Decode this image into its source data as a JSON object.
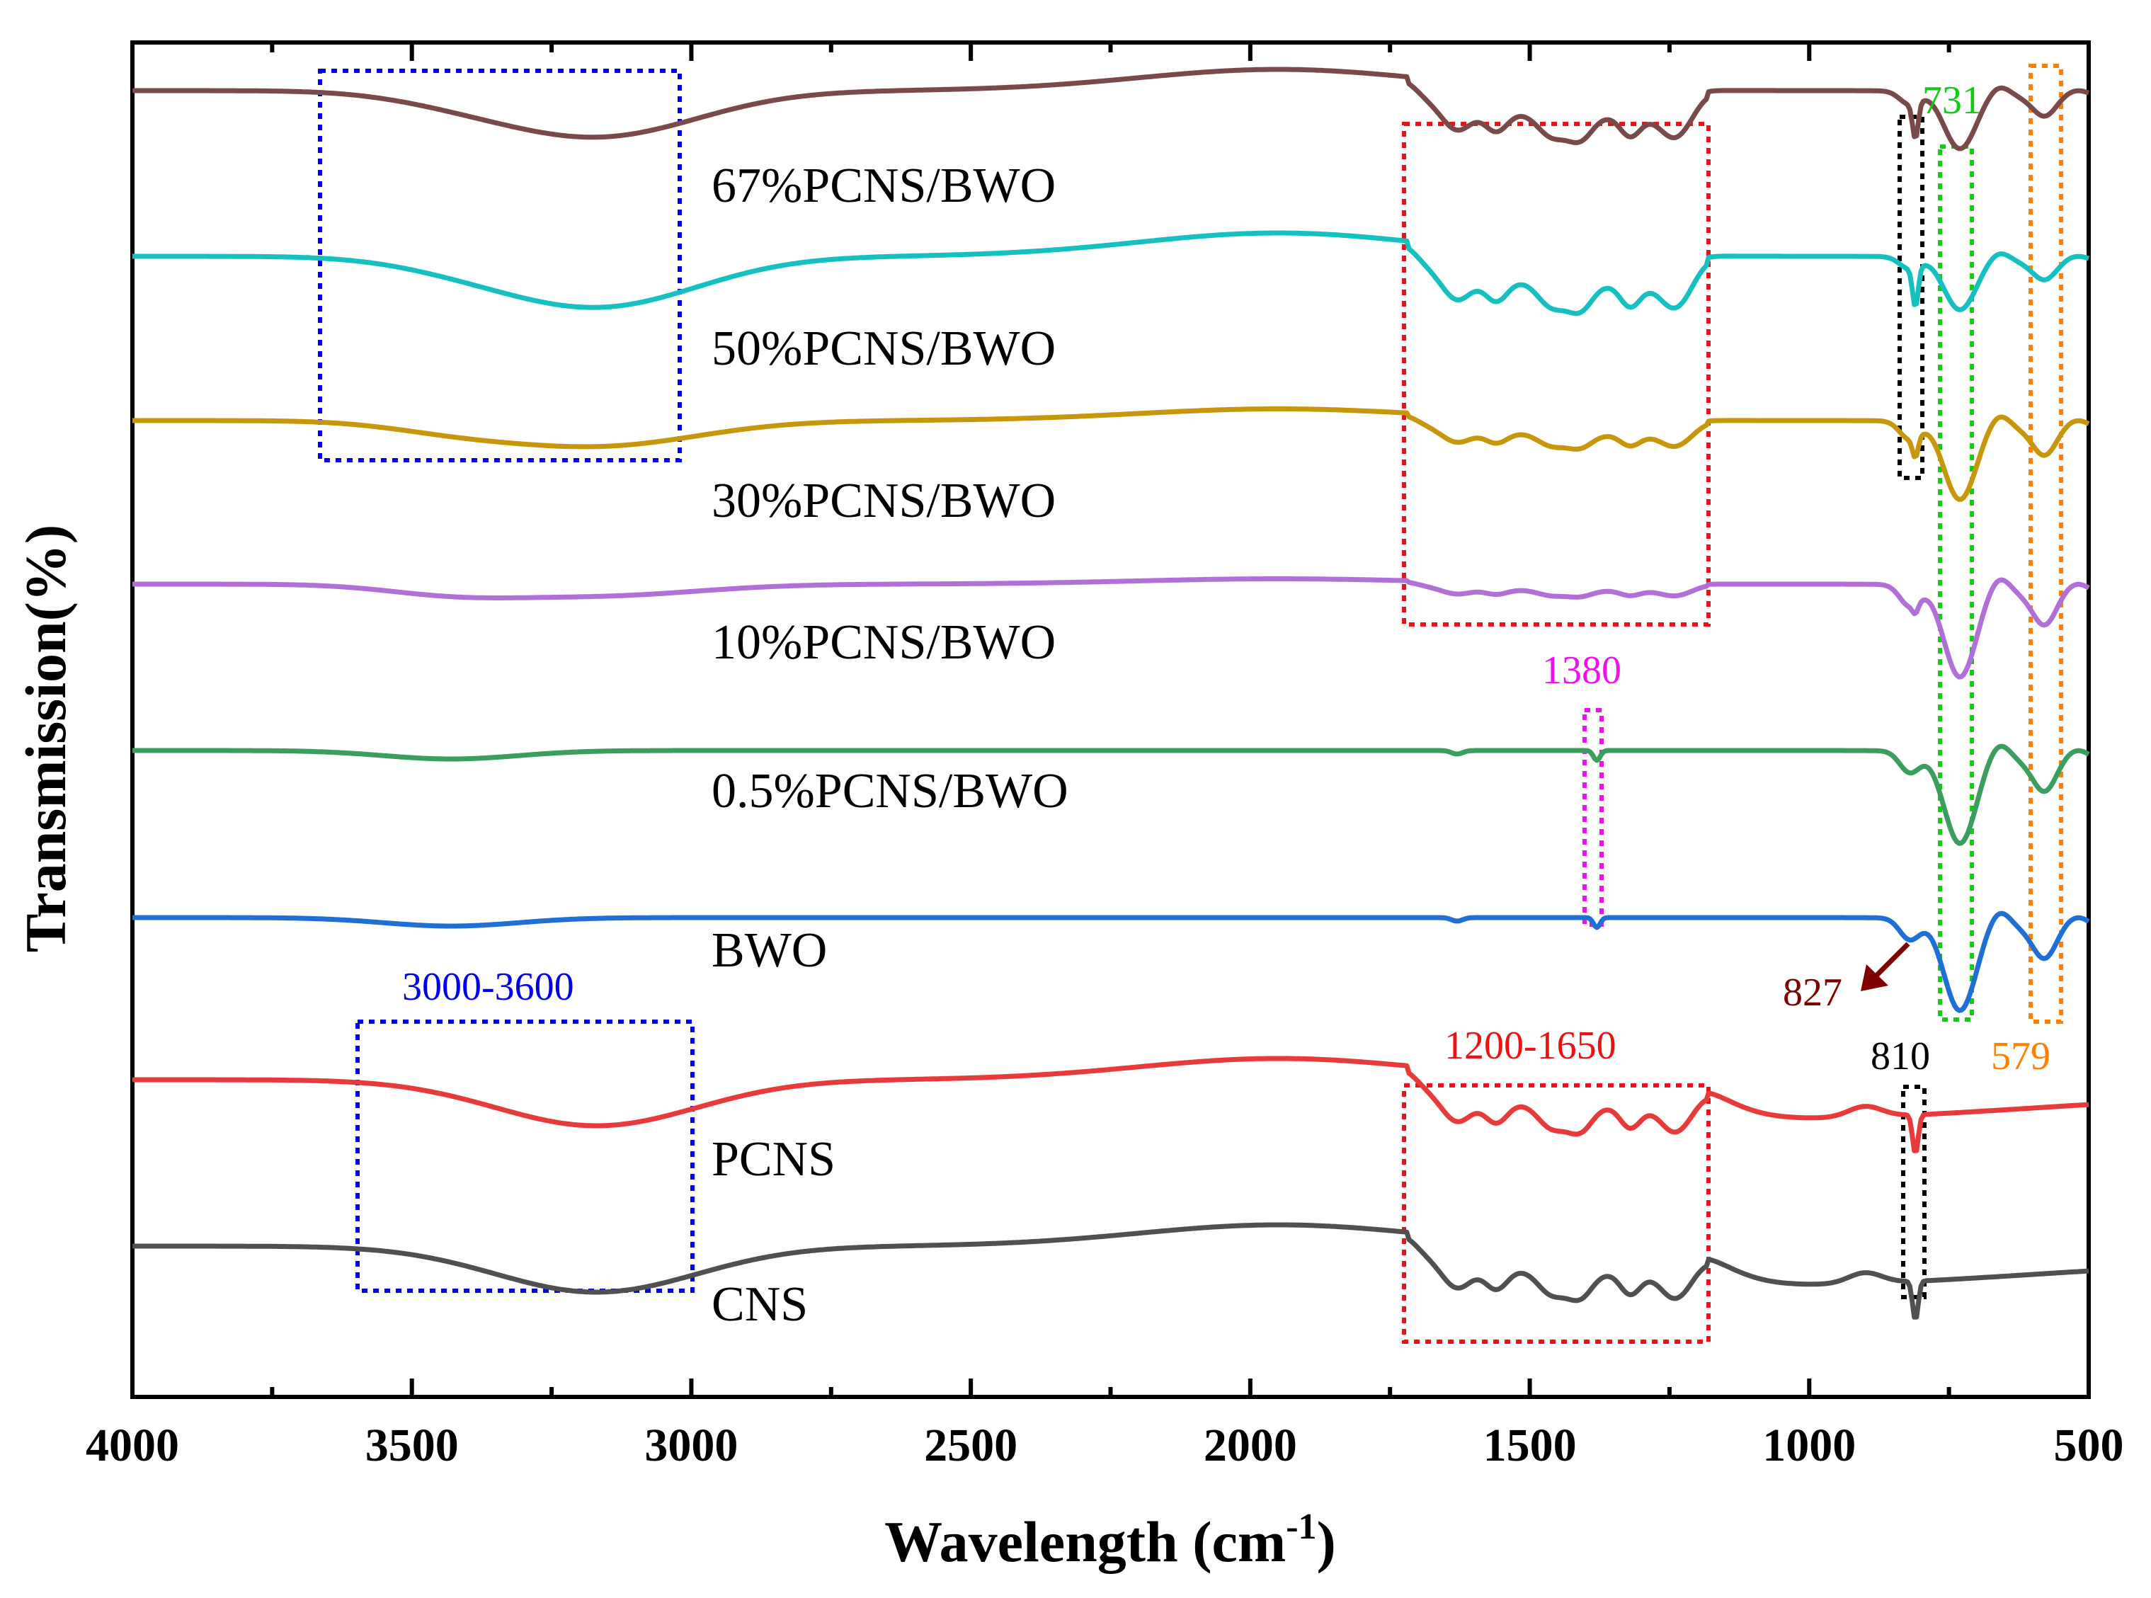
{
  "chart_data": {
    "type": "line",
    "title": "",
    "xlabel": "Wavelength (cm",
    "xlabel_superscript": "-1",
    "xlabel_close": ")",
    "ylabel": "Transmission(%)",
    "xlim": [
      4000,
      500
    ],
    "x_reversed": true,
    "x_ticks": [
      "4000",
      "3500",
      "3000",
      "2500",
      "2000",
      "1500",
      "1000",
      "500"
    ],
    "series": [
      {
        "name": "67%PCNS/BWO",
        "color": "#7a4a4a",
        "offset": 7,
        "profile": "composite",
        "depth": 1.0
      },
      {
        "name": "50%PCNS/BWO",
        "color": "#17c0c0",
        "offset": 6,
        "profile": "composite",
        "depth": 1.1
      },
      {
        "name": "30%PCNS/BWO",
        "color": "#c8960a",
        "offset": 5,
        "profile": "composite",
        "depth": 0.55
      },
      {
        "name": "10%PCNS/BWO",
        "color": "#b070d8",
        "offset": 4,
        "profile": "composite",
        "depth": 0.25
      },
      {
        "name": "0.5%PCNS/BWO",
        "color": "#3a9e5e",
        "offset": 3,
        "profile": "bwo",
        "depth": 1.0
      },
      {
        "name": "BWO",
        "color": "#1f6fd6",
        "offset": 2,
        "profile": "bwo",
        "depth": 1.0
      },
      {
        "name": "PCNS",
        "color": "#e83a3a",
        "offset": 1,
        "profile": "cn",
        "depth": 1.0
      },
      {
        "name": "CNS",
        "color": "#505050",
        "offset": 0,
        "profile": "cn",
        "depth": 1.0
      }
    ],
    "annotations": [
      {
        "id": "range-3000-3600",
        "label": "3000-3600",
        "color": "#0000ee",
        "x_from": 3600,
        "x_to": 3000
      },
      {
        "id": "range-1200-1650",
        "label": "1200-1650",
        "color": "#ee1111",
        "x_from": 1650,
        "x_to": 1200
      },
      {
        "id": "peak-1380",
        "label": "1380",
        "color": "#ee11ee",
        "x": 1380
      },
      {
        "id": "peak-731",
        "label": "731",
        "color": "#11cc11",
        "x": 731
      },
      {
        "id": "peak-579",
        "label": "579",
        "color": "#ff8000",
        "x": 579
      },
      {
        "id": "peak-810",
        "label": "810",
        "color": "#000000",
        "x": 810
      },
      {
        "id": "peak-827",
        "label": "827",
        "color": "#800000",
        "x": 827
      }
    ]
  }
}
